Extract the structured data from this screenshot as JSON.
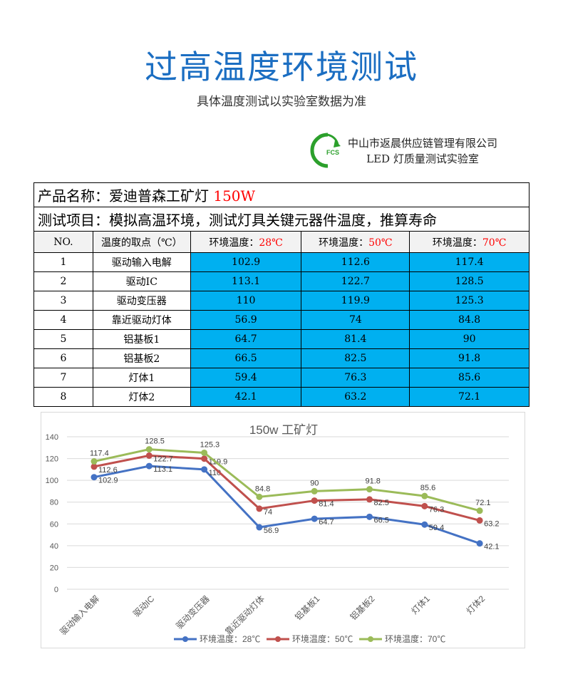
{
  "header": {
    "title": "过高温度环境测试",
    "subtitle": "具体温度测试以实验室数据为准"
  },
  "logo": {
    "mark": "FCS",
    "company": "中山市返晨供应链管理有限公司",
    "lab": "LED 灯质量测试实验室"
  },
  "table": {
    "product_label": "产品名称：爱迪普森工矿灯 ",
    "product_power": "150W",
    "test_item": "测试项目：模拟高温环境，测试灯具关键元器件温度，推算寿命",
    "columns": [
      {
        "label": "NO."
      },
      {
        "label": "温度的取点（℃）"
      },
      {
        "label": "环境温度：",
        "temp": "28℃"
      },
      {
        "label": "环境温度：",
        "temp": "50℃"
      },
      {
        "label": "环境温度：",
        "temp": "70℃"
      }
    ],
    "rows": [
      {
        "no": "1",
        "point": "驱动输入电解",
        "t28": "102.9",
        "t50": "112.6",
        "t70": "117.4"
      },
      {
        "no": "2",
        "point": "驱动IC",
        "t28": "113.1",
        "t50": "122.7",
        "t70": "128.5"
      },
      {
        "no": "3",
        "point": "驱动变压器",
        "t28": "110",
        "t50": "119.9",
        "t70": "125.3"
      },
      {
        "no": "4",
        "point": "靠近驱动灯体",
        "t28": "56.9",
        "t50": "74",
        "t70": "84.8"
      },
      {
        "no": "5",
        "point": "铝基板1",
        "t28": "64.7",
        "t50": "81.4",
        "t70": "90"
      },
      {
        "no": "6",
        "point": "铝基板2",
        "t28": "66.5",
        "t50": "82.5",
        "t70": "91.8"
      },
      {
        "no": "7",
        "point": "灯体1",
        "t28": "59.4",
        "t50": "76.3",
        "t70": "85.6"
      },
      {
        "no": "8",
        "point": "灯体2",
        "t28": "42.1",
        "t50": "63.2",
        "t70": "72.1"
      }
    ]
  },
  "chart_data": {
    "type": "line",
    "title": "150w 工矿灯",
    "categories": [
      "驱动输入电解",
      "驱动IC",
      "驱动变压器",
      "靠近驱动灯体",
      "铝基板1",
      "铝基板2",
      "灯体1",
      "灯体2"
    ],
    "ylim": [
      0,
      140
    ],
    "yticks": [
      0,
      20,
      40,
      60,
      80,
      100,
      120,
      140
    ],
    "grid": true,
    "legend": "bottom",
    "series": [
      {
        "name": "环境温度：28℃",
        "color": "#4472c4",
        "values": [
          102.9,
          113.1,
          110,
          56.9,
          64.7,
          66.5,
          59.4,
          42.1
        ]
      },
      {
        "name": "环境温度：50℃",
        "color": "#c0504d",
        "values": [
          112.6,
          122.7,
          119.9,
          74,
          81.4,
          82.5,
          76.3,
          63.2
        ]
      },
      {
        "name": "环境温度：70℃",
        "color": "#9bbb59",
        "values": [
          117.4,
          128.5,
          125.3,
          84.8,
          90,
          91.8,
          85.6,
          72.1
        ]
      }
    ]
  }
}
